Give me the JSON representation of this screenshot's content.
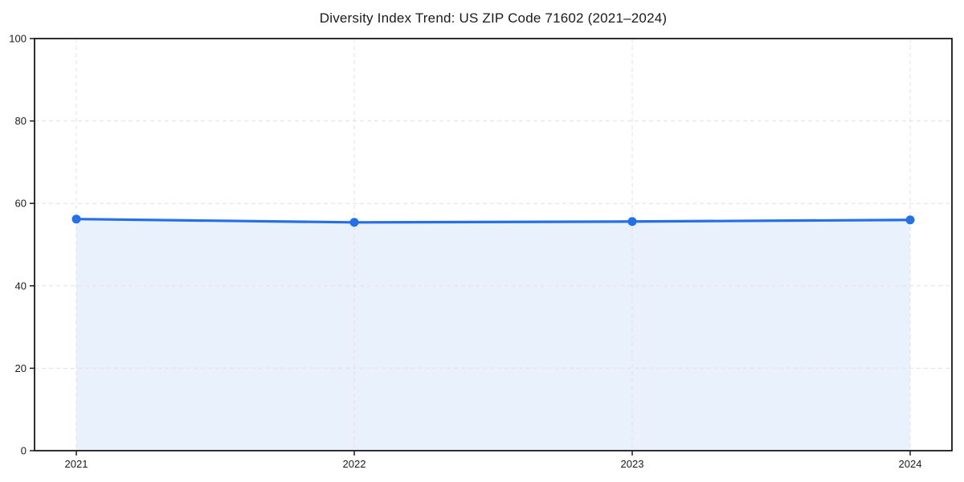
{
  "title": "Diversity Index Trend: US ZIP Code 71602 (2021–2024)",
  "chart_data": {
    "type": "line",
    "title": "Diversity Index Trend: US ZIP Code 71602 (2021–2024)",
    "categories": [
      "2021",
      "2022",
      "2023",
      "2024"
    ],
    "series": [
      {
        "name": "Diversity Index",
        "values": [
          56.2,
          55.4,
          55.6,
          56.0
        ]
      }
    ],
    "ylim": [
      0,
      100
    ],
    "yticks": [
      0,
      20,
      40,
      60,
      80,
      100
    ],
    "grid": "dashed",
    "area_fill": true,
    "legend": "none",
    "colors": {
      "line": "#2470e8",
      "marker": "#2470e8",
      "fill": "#e9f1fd",
      "grid": "#e1e1e1",
      "axis": "#1a1a1a",
      "text": "#1a1a1a",
      "background": "#ffffff"
    }
  }
}
